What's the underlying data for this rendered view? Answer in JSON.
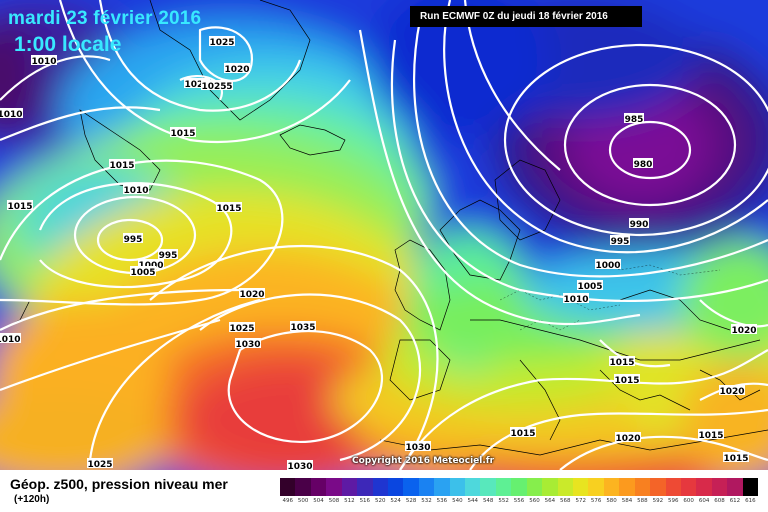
{
  "header": {
    "date": "mardi 23 février 2016",
    "time": "1:00 locale",
    "run": "Run ECMWF 0Z du jeudi 18 février 2016"
  },
  "map": {
    "copyright": "Copyright 2016 Meteociel.fr",
    "isobar_labels": [
      "1025",
      "1020",
      "1025",
      "1010",
      "1020",
      "1025",
      "1010",
      "1015",
      "1015",
      "1010",
      "1015",
      "995",
      "995",
      "1000",
      "1005",
      "1015",
      "1020",
      "1025",
      "1035",
      "1030",
      "1030",
      "1025",
      "1015",
      "985",
      "980",
      "990",
      "995",
      "1000",
      "1005",
      "1010",
      "1020",
      "1015",
      "1015",
      "1020",
      "1015",
      "1020",
      "1015",
      "1010",
      "1030"
    ]
  },
  "legend": {
    "title": "Géop. z500, pression niveau mer",
    "subtitle": "(+120h)",
    "scale_values": [
      "496",
      "500",
      "504",
      "508",
      "512",
      "516",
      "520",
      "524",
      "528",
      "532",
      "536",
      "540",
      "544",
      "548",
      "552",
      "556",
      "560",
      "564",
      "568",
      "572",
      "576",
      "580",
      "584",
      "588",
      "592",
      "596",
      "600",
      "604",
      "608",
      "612",
      "616"
    ],
    "scale_colors": [
      "#33002a",
      "#4a0048",
      "#660066",
      "#7a0a88",
      "#5e1aa4",
      "#3d28b8",
      "#1f35d0",
      "#0a46e0",
      "#0a62ee",
      "#1a82f2",
      "#2aa2f2",
      "#3cc0ea",
      "#4ed8dc",
      "#58e8bc",
      "#5ef094",
      "#66f070",
      "#86ee4c",
      "#a8ec34",
      "#caea2a",
      "#e8e420",
      "#f8d020",
      "#fcb420",
      "#fc9a1e",
      "#f88020",
      "#f46428",
      "#ee4a34",
      "#e6383e",
      "#d82a4a",
      "#c62056",
      "#b01860",
      "#000000"
    ]
  }
}
